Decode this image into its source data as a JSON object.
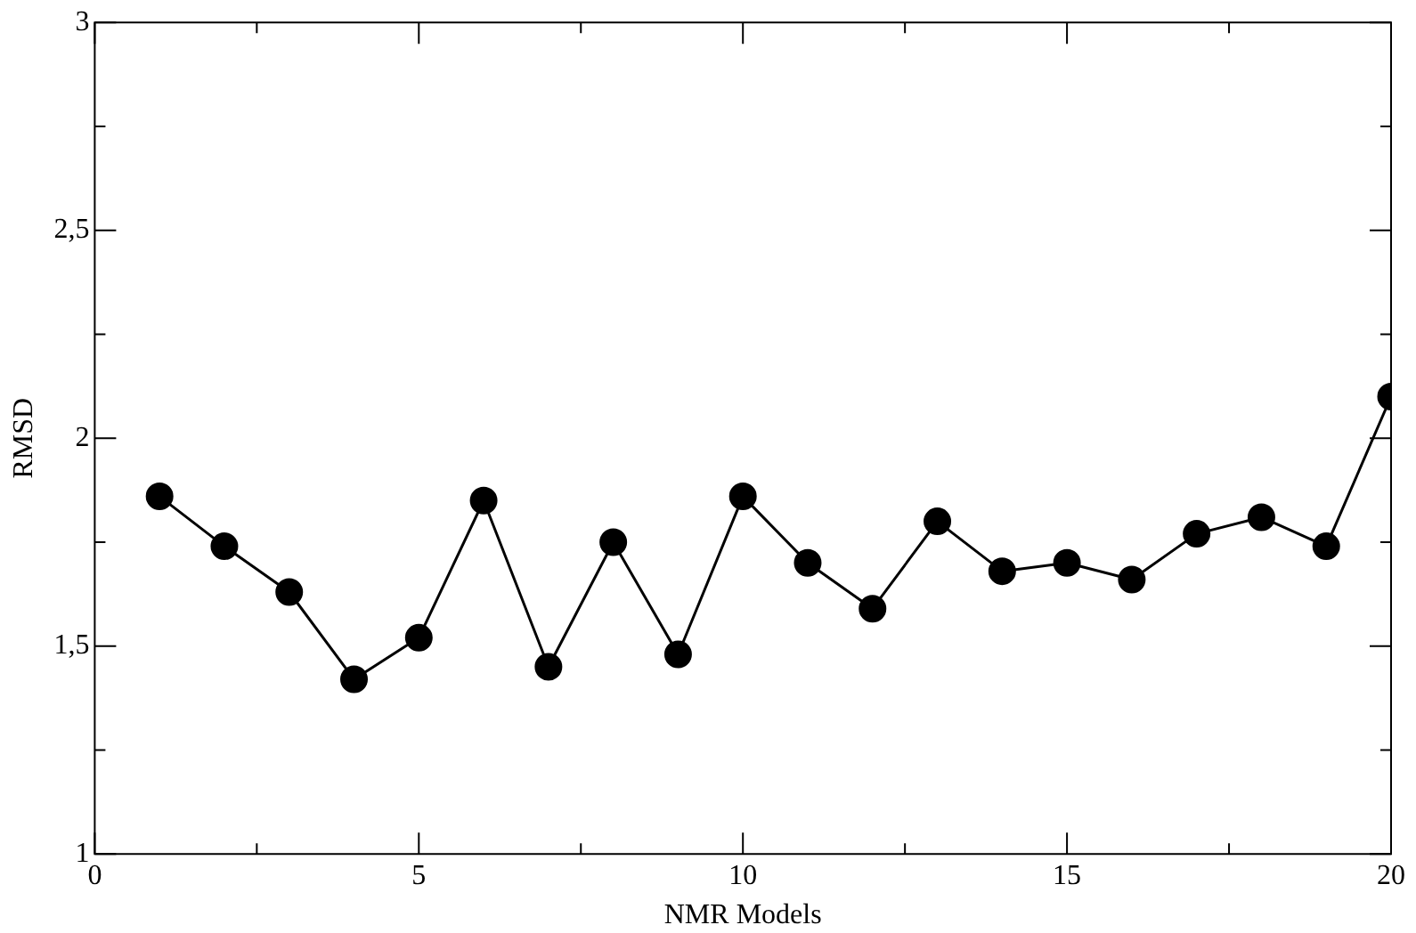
{
  "chart_data": {
    "type": "line",
    "xlabel": "NMR Models",
    "ylabel": "RMSD",
    "x": [
      1,
      2,
      3,
      4,
      5,
      6,
      7,
      8,
      9,
      10,
      11,
      12,
      13,
      14,
      15,
      16,
      17,
      18,
      19,
      20
    ],
    "series": [
      {
        "color": "#000000",
        "values": [
          1.86,
          1.74,
          1.63,
          1.42,
          1.52,
          1.85,
          1.45,
          1.75,
          1.48,
          1.86,
          1.7,
          1.59,
          1.8,
          1.68,
          1.7,
          1.66,
          1.77,
          1.81,
          1.74,
          2.1
        ]
      }
    ],
    "xlim": [
      0,
      20
    ],
    "xticks": [
      0,
      {
        "value": 2.5,
        "label": null
      },
      5,
      {
        "value": 7.5,
        "label": null
      },
      10,
      {
        "value": 12.5,
        "label": null
      },
      15,
      {
        "value": 17.5,
        "label": null
      },
      20
    ],
    "ylim": [
      1,
      3
    ],
    "yticks": [
      1,
      {
        "value": 1.25,
        "label": null
      },
      {
        "value": 1.5,
        "label": "1,5"
      },
      {
        "value": 1.75,
        "label": null
      },
      2,
      {
        "value": 2.25,
        "label": null
      },
      {
        "value": 2.5,
        "label": "2,5"
      },
      {
        "value": 2.75,
        "label": null
      },
      3
    ],
    "marker": "circle",
    "line_style": "solid",
    "grid": false,
    "legend": false
  }
}
